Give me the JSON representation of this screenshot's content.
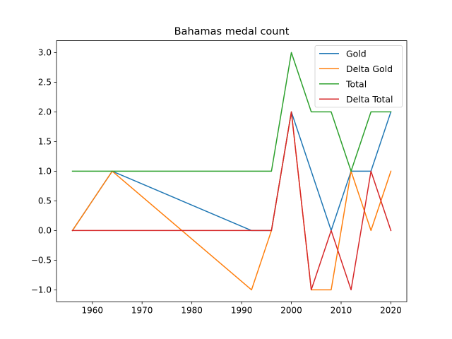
{
  "chart_data": {
    "type": "line",
    "title": "Bahamas medal count",
    "xlabel": "",
    "ylabel": "",
    "xlim": [
      1952.8,
      2023.2
    ],
    "ylim": [
      -1.2,
      3.2
    ],
    "x_ticks": [
      1960,
      1970,
      1980,
      1990,
      2000,
      2010,
      2020
    ],
    "y_ticks": [
      -1.0,
      -0.5,
      0.0,
      0.5,
      1.0,
      1.5,
      2.0,
      2.5,
      3.0
    ],
    "y_tick_labels": [
      "−1.0",
      "−0.5",
      "0.0",
      "0.5",
      "1.0",
      "1.5",
      "2.0",
      "2.5",
      "3.0"
    ],
    "grid": false,
    "legend_position": "top-right",
    "series": [
      {
        "name": "Gold",
        "color": "#1f77b4",
        "x": [
          1956,
          1964,
          1992,
          1996,
          2000,
          2008,
          2012,
          2016,
          2020
        ],
        "values": [
          0,
          1,
          0,
          0,
          2,
          0,
          1,
          1,
          2
        ]
      },
      {
        "name": "Delta Gold",
        "color": "#ff7f0e",
        "x": [
          1956,
          1964,
          1992,
          1996,
          2000,
          2004,
          2008,
          2012,
          2016,
          2020
        ],
        "values": [
          0,
          1,
          -1,
          0,
          2,
          -1,
          -1,
          1,
          0,
          1
        ]
      },
      {
        "name": "Total",
        "color": "#2ca02c",
        "x": [
          1956,
          1996,
          2000,
          2004,
          2008,
          2012,
          2016,
          2020
        ],
        "values": [
          1,
          1,
          3,
          2,
          2,
          1,
          2,
          2
        ]
      },
      {
        "name": "Delta Total",
        "color": "#d62728",
        "x": [
          1956,
          1996,
          2000,
          2004,
          2008,
          2012,
          2016,
          2020
        ],
        "values": [
          0,
          0,
          2,
          -1,
          0,
          -1,
          1,
          0
        ]
      }
    ]
  }
}
